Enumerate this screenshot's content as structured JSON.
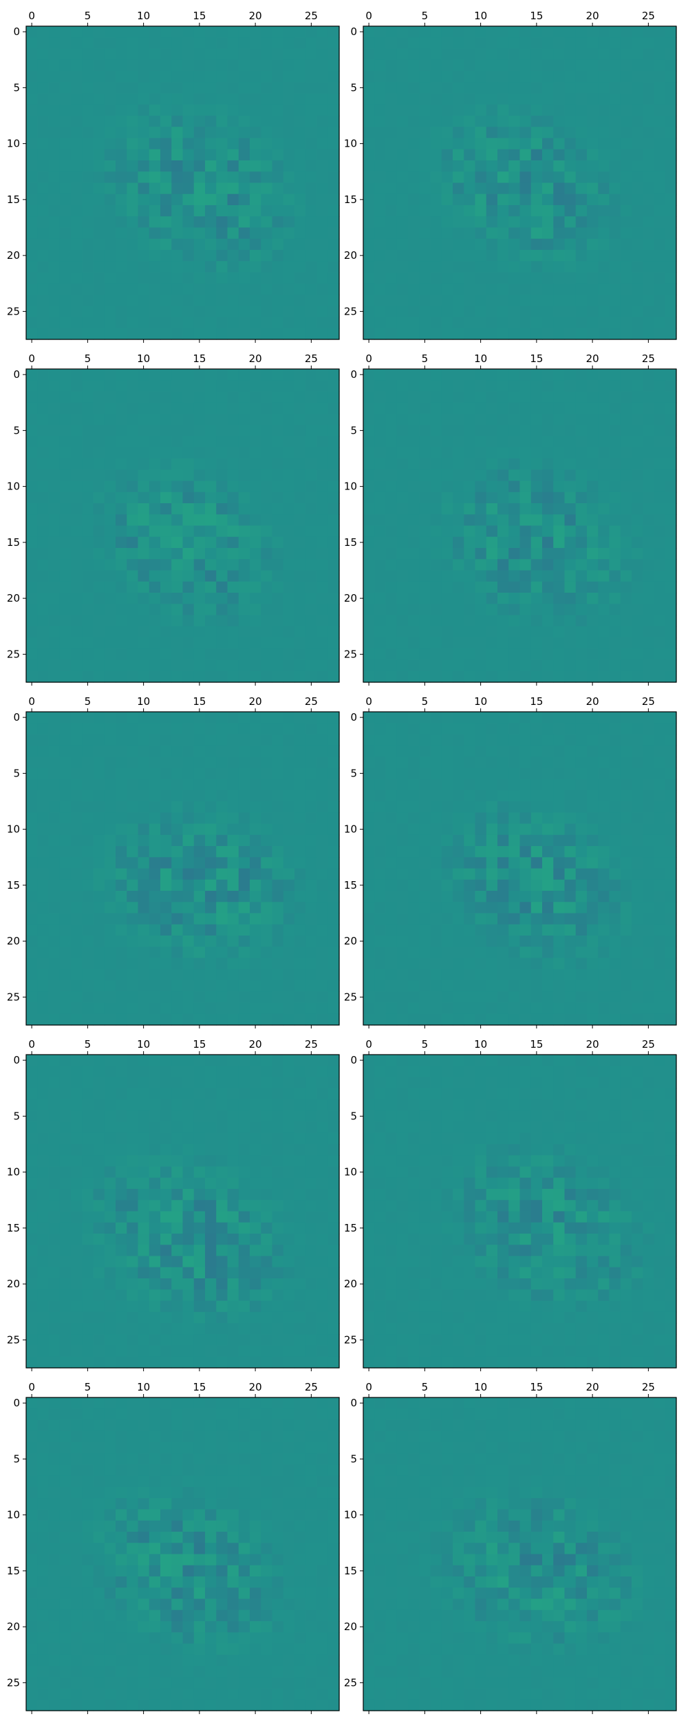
{
  "chart_data": {
    "type": "heatmap",
    "layout": "5 rows x 2 columns of image panels",
    "grid_shape": [
      28,
      28
    ],
    "colormap": "viridis",
    "xaxis": {
      "position": "top",
      "lim": [
        -0.5,
        27.5
      ],
      "ticks": [
        0,
        5,
        10,
        15,
        20,
        25
      ]
    },
    "yaxis": {
      "lim": [
        27.5,
        -0.5
      ],
      "ticks": [
        0,
        5,
        10,
        15,
        20,
        25
      ],
      "inverted": true
    },
    "colors": {
      "background": "#21918c",
      "low": "#2b7b8e",
      "high": "#25a584"
    },
    "panels": [
      {
        "row": 0,
        "col": 0,
        "blob": {
          "center": [
            14,
            15
          ],
          "radius": 10.5,
          "tilt": 0.55
        }
      },
      {
        "row": 0,
        "col": 1,
        "blob": {
          "center": [
            14,
            14
          ],
          "radius": 10.0,
          "tilt": 0.5
        }
      },
      {
        "row": 1,
        "col": 0,
        "blob": {
          "center": [
            15,
            14
          ],
          "radius": 10.0,
          "tilt": 0.55
        }
      },
      {
        "row": 1,
        "col": 1,
        "blob": {
          "center": [
            15,
            15
          ],
          "radius": 10.5,
          "tilt": 0.45
        }
      },
      {
        "row": 2,
        "col": 0,
        "blob": {
          "center": [
            15,
            15
          ],
          "radius": 10.5,
          "tilt": 0.2
        }
      },
      {
        "row": 2,
        "col": 1,
        "blob": {
          "center": [
            15,
            15
          ],
          "radius": 10.0,
          "tilt": 0.55
        }
      },
      {
        "row": 3,
        "col": 0,
        "blob": {
          "center": [
            16,
            14
          ],
          "radius": 11.0,
          "tilt": 0.4
        }
      },
      {
        "row": 3,
        "col": 1,
        "blob": {
          "center": [
            15,
            16
          ],
          "radius": 10.5,
          "tilt": 0.5
        }
      },
      {
        "row": 4,
        "col": 0,
        "blob": {
          "center": [
            15,
            14
          ],
          "radius": 10.5,
          "tilt": 0.5
        }
      },
      {
        "row": 4,
        "col": 1,
        "blob": {
          "center": [
            15,
            15
          ],
          "radius": 10.5,
          "tilt": 0.3
        }
      }
    ]
  }
}
